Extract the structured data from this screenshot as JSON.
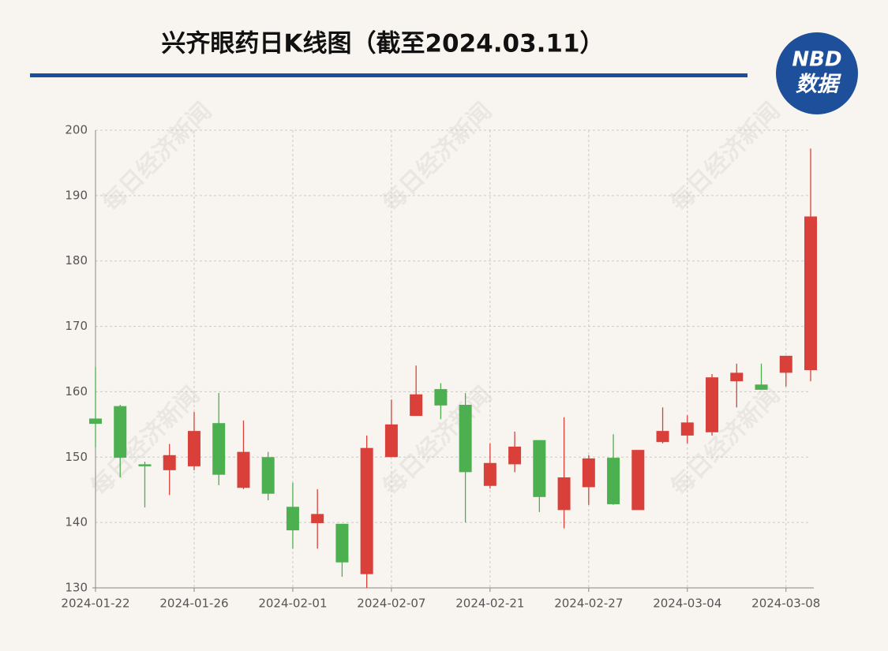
{
  "chart_data": {
    "type": "candlestick",
    "title": "兴齐眼药日K线图（截至2024.03.11）",
    "logo": {
      "top": "NBD",
      "bottom": "数据"
    },
    "watermark": "每日经济新闻",
    "categories": [
      "2024-01-22",
      null,
      null,
      null,
      "2024-01-26",
      null,
      null,
      null,
      "2024-02-01",
      null,
      null,
      null,
      "2024-02-07",
      null,
      null,
      null,
      "2024-02-21",
      null,
      null,
      null,
      "2024-02-27",
      null,
      null,
      null,
      "2024-03-04",
      null,
      null,
      null,
      "2024-03-08",
      null
    ],
    "open": [
      155.9,
      157.8,
      148.9,
      148.0,
      148.6,
      155.2,
      145.3,
      150.0,
      142.4,
      139.9,
      139.8,
      132.1,
      150.0,
      156.3,
      160.4,
      158.0,
      145.6,
      148.9,
      152.6,
      141.9,
      145.4,
      149.9,
      141.9,
      152.3,
      153.3,
      153.8,
      161.6,
      161.1,
      162.9,
      163.3
    ],
    "high": [
      163.8,
      158.0,
      149.3,
      152.0,
      156.9,
      159.8,
      155.6,
      150.8,
      146.1,
      145.1,
      139.8,
      153.3,
      158.8,
      164.0,
      161.3,
      159.8,
      152.1,
      153.9,
      152.6,
      156.1,
      150.3,
      153.5,
      151.1,
      157.6,
      156.4,
      162.7,
      164.3,
      164.3,
      165.5,
      197.2
    ],
    "low": [
      151.5,
      146.9,
      142.3,
      144.2,
      148.0,
      145.7,
      145.1,
      143.4,
      136.0,
      136.0,
      131.7,
      130.0,
      150.0,
      156.3,
      155.8,
      140.0,
      145.2,
      147.7,
      141.6,
      139.1,
      142.7,
      142.7,
      141.9,
      152.1,
      152.1,
      153.3,
      157.6,
      160.3,
      160.8,
      161.6
    ],
    "close": [
      155.1,
      149.9,
      148.6,
      150.3,
      154.0,
      147.3,
      150.8,
      144.4,
      138.8,
      141.3,
      133.9,
      151.4,
      155.0,
      159.6,
      157.9,
      147.7,
      149.1,
      151.6,
      143.9,
      146.9,
      149.8,
      142.8,
      151.1,
      154.0,
      155.3,
      162.2,
      162.9,
      160.3,
      165.5,
      186.8
    ],
    "up_color": "#d9403a",
    "down_color": "#4caf50",
    "ylim": [
      130,
      200
    ],
    "yticks": [
      130,
      140,
      150,
      160,
      170,
      180,
      190,
      200
    ],
    "grid": true
  }
}
